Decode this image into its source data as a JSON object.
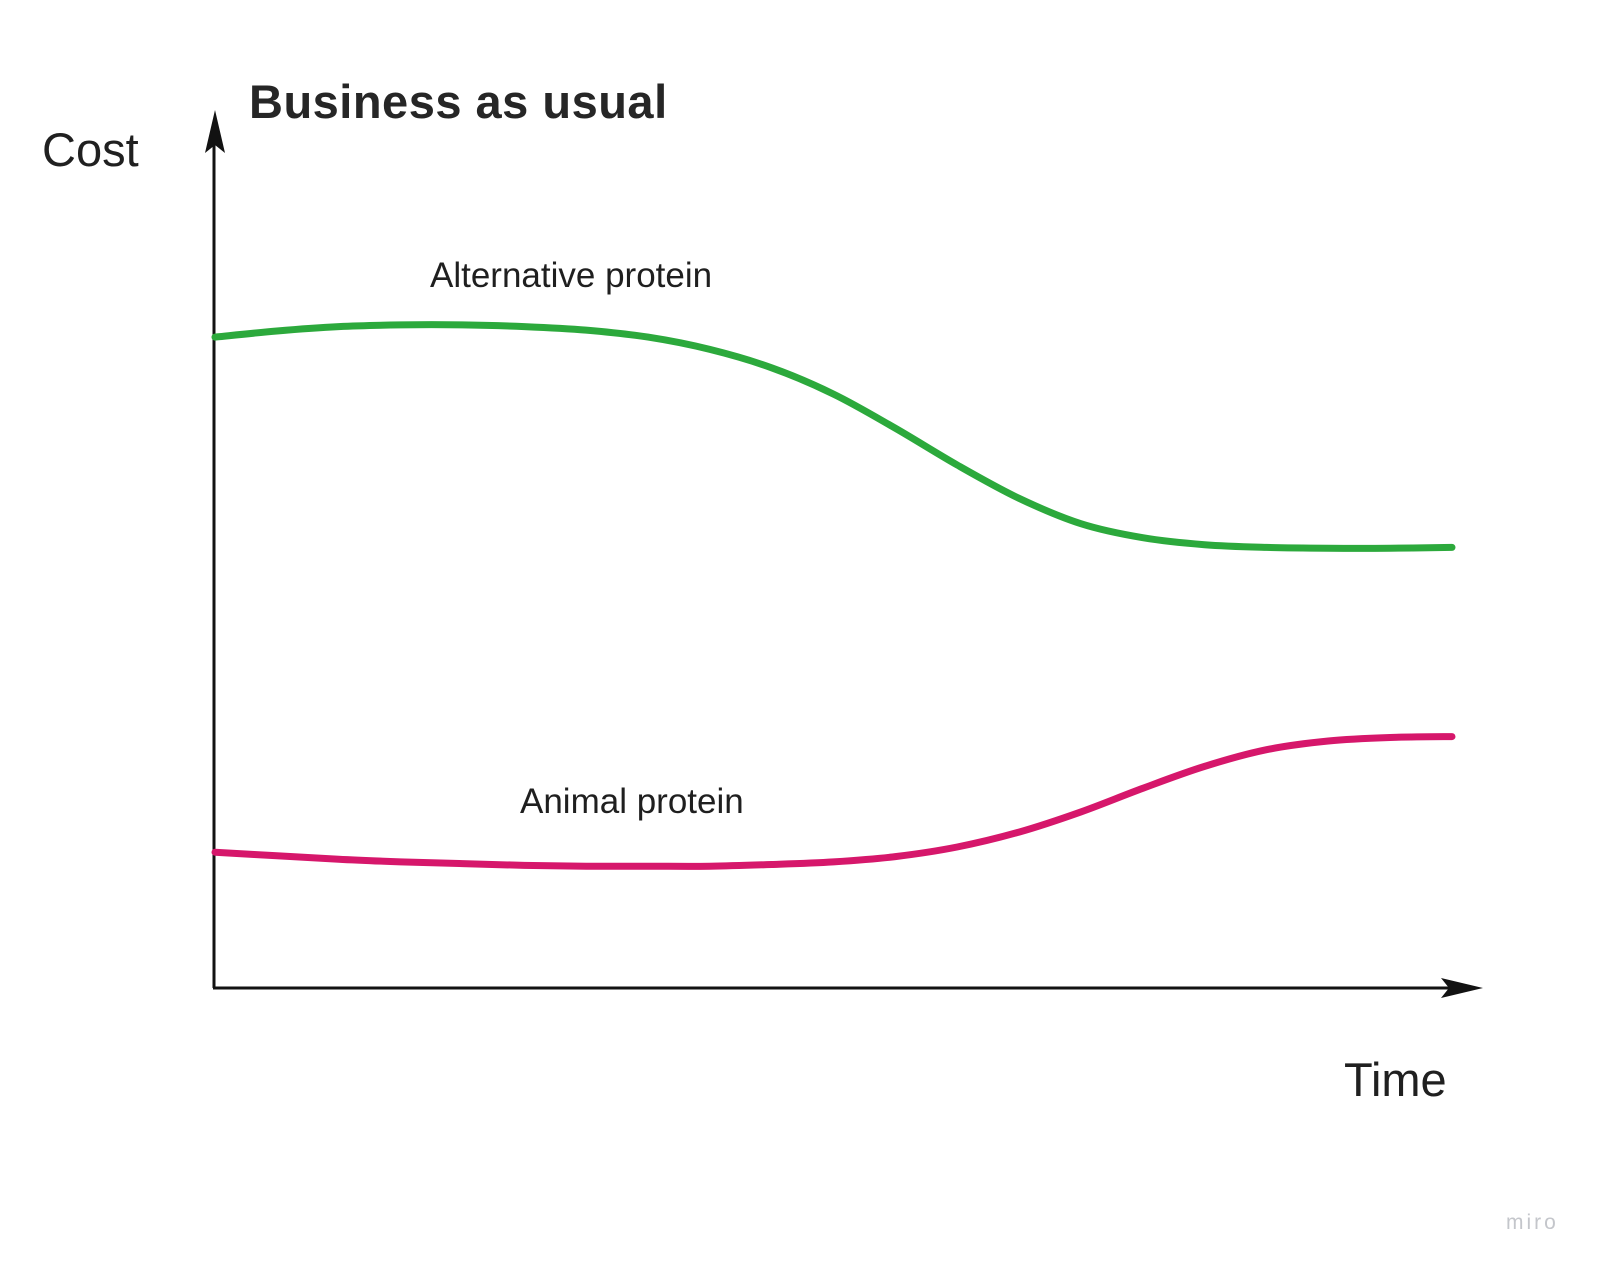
{
  "page": {
    "background": "#ffffff",
    "watermark": "miro"
  },
  "chart_data": {
    "type": "line",
    "title": "Business as usual",
    "xlabel": "Time",
    "ylabel": "Cost",
    "x_range": [
      0,
      100
    ],
    "y_range": [
      0,
      100
    ],
    "grid": false,
    "tick_labels": "none",
    "axes_color": "#121212",
    "legend_position": "inline-labels-above-curves",
    "series": [
      {
        "name": "Alternative protein",
        "color": "#2ca93c",
        "x": [
          0,
          5,
          10,
          15,
          20,
          25,
          30,
          35,
          40,
          45,
          50,
          55,
          60,
          65,
          70,
          75,
          80,
          85,
          90,
          95,
          100
        ],
        "values": [
          74.3,
          75.0,
          75.5,
          75.7,
          75.7,
          75.5,
          75.1,
          74.3,
          72.9,
          70.8,
          67.8,
          63.9,
          59.7,
          55.9,
          53.0,
          51.4,
          50.6,
          50.3,
          50.2,
          50.2,
          50.3
        ]
      },
      {
        "name": "Animal protein",
        "color": "#d6176b",
        "x": [
          0,
          5,
          10,
          15,
          20,
          25,
          30,
          35,
          40,
          45,
          50,
          55,
          60,
          65,
          70,
          75,
          80,
          85,
          90,
          95,
          100
        ],
        "values": [
          15.5,
          15.1,
          14.7,
          14.4,
          14.2,
          14.0,
          13.9,
          13.9,
          13.9,
          14.1,
          14.4,
          15.0,
          16.1,
          17.8,
          20.1,
          22.8,
          25.3,
          27.2,
          28.2,
          28.6,
          28.7
        ]
      }
    ]
  }
}
